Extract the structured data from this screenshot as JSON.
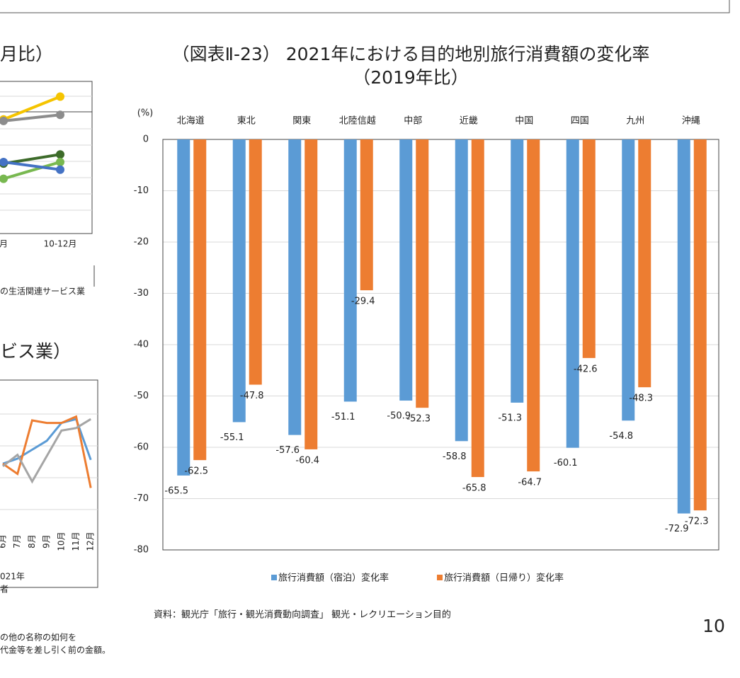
{
  "chart_data": [
    {
      "type": "bar",
      "title": "（図表Ⅱ-23） 2021年における目的地別旅行消費額の変化率",
      "subtitle": "（2019年比）",
      "y_label": "(%)",
      "categories": [
        "北海道",
        "東北",
        "関東",
        "北陸信越",
        "中部",
        "近畿",
        "中国",
        "四国",
        "九州",
        "沖縄"
      ],
      "series": [
        {
          "name": "旅行消費額（宿泊）変化率",
          "color": "#5b9bd5",
          "values": [
            -65.5,
            -55.1,
            -57.6,
            -51.1,
            -50.9,
            -58.8,
            -51.3,
            -60.1,
            -54.8,
            -72.9
          ]
        },
        {
          "name": "旅行消費額（日帰り）変化率",
          "color": "#ed7d31",
          "values": [
            -62.5,
            -47.8,
            -60.4,
            -29.4,
            -52.3,
            -65.8,
            -64.7,
            -42.6,
            -48.3,
            -72.3
          ]
        }
      ],
      "ylim": [
        -80,
        0
      ],
      "yticks": [
        0,
        -10,
        -20,
        -30,
        -40,
        -50,
        -60,
        -70,
        -80
      ],
      "grid": true,
      "legend": "bottom"
    },
    {
      "type": "line",
      "title": "月比）",
      "categories": [
        "月",
        "10-12月"
      ],
      "series": [
        {
          "color": "#f5c400",
          "values": [
            75,
            90
          ]
        },
        {
          "color": "#8c8c8c",
          "values": [
            74,
            78
          ]
        },
        {
          "color": "#3d6b2a",
          "values": [
            46,
            52
          ]
        },
        {
          "color": "#78b850",
          "values": [
            36,
            47
          ]
        },
        {
          "color": "#4472c4",
          "values": [
            47,
            42
          ]
        }
      ],
      "ylim": [
        0,
        100
      ],
      "note": "の生活関連サービス業"
    },
    {
      "type": "line",
      "title": "ビス業）",
      "categories": [
        "6月",
        "7月",
        "8月",
        "9月",
        "10月",
        "11月",
        "12月"
      ],
      "series": [
        {
          "color": "#5b9bd5",
          "values": [
            36,
            40,
            47,
            54,
            68,
            71,
            39
          ]
        },
        {
          "color": "#ed7d31",
          "values": [
            36,
            28,
            70,
            68,
            68,
            73,
            17
          ]
        },
        {
          "color": "#a5a5a5",
          "values": [
            34,
            43,
            22,
            42,
            62,
            64,
            71
          ]
        }
      ],
      "ylim": [
        0,
        100
      ],
      "notes": [
        "021年",
        "者"
      ]
    }
  ],
  "source": "資料：観光庁「旅行・観光消費動向調査」 観光・レクリエーション目的",
  "footnotes": [
    "の他の名称の如何を",
    "代金等を差し引く前の金額。"
  ],
  "page_number": "10"
}
